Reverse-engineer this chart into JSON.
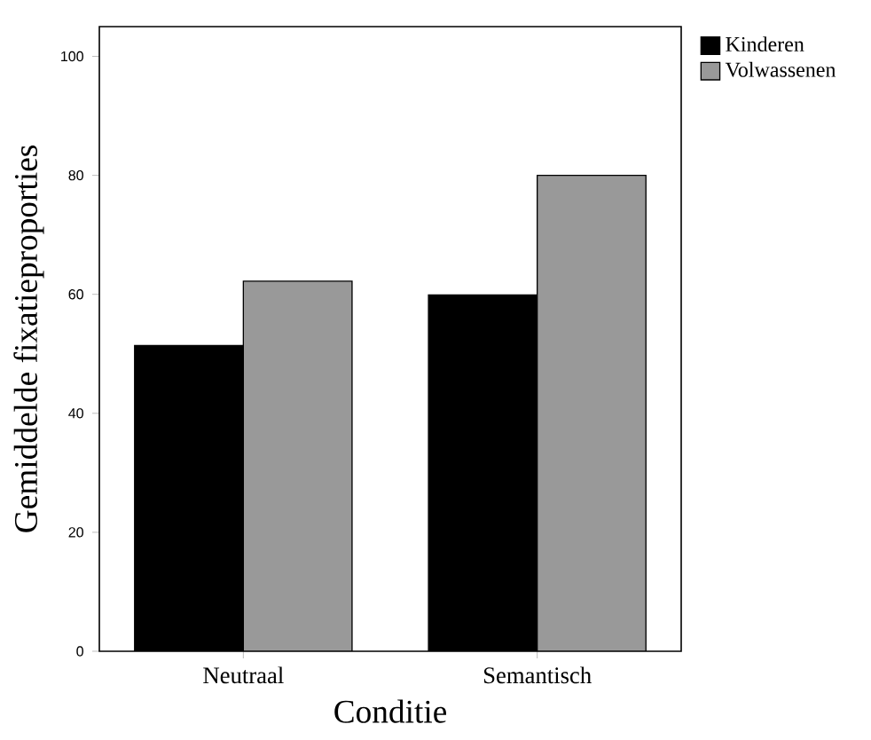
{
  "chart_data": {
    "type": "bar",
    "xlabel": "Conditie",
    "ylabel": "Gemiddelde fixatieproporties",
    "categories": [
      "Neutraal",
      "Semantisch"
    ],
    "series": [
      {
        "name": "Kinderen",
        "color": "#000000",
        "values": [
          51.4,
          59.9
        ]
      },
      {
        "name": "Volwassenen",
        "color": "#999999",
        "values": [
          62.2,
          80
        ]
      }
    ],
    "ylim": [
      0,
      105
    ],
    "yticks": [
      0,
      20,
      40,
      60,
      80,
      100
    ],
    "legend": "top right",
    "grid": false
  }
}
